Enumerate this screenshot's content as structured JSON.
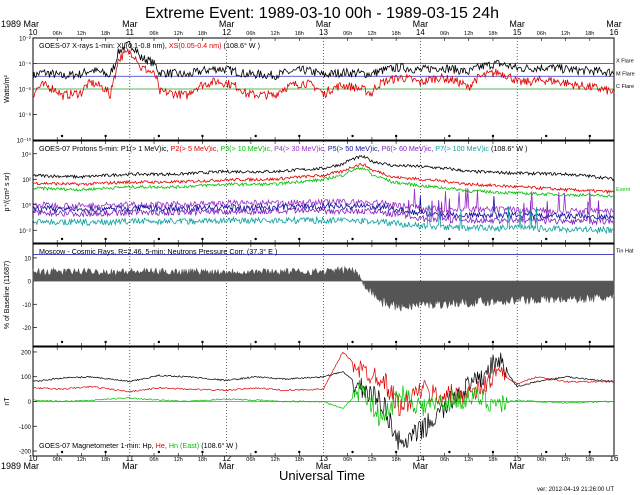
{
  "title": "Extreme Event: 1989-03-10 00h - 1989-03-15 24h",
  "version": "ver: 2012-04-19 21:26:00 UT",
  "xaxis": {
    "label": "Universal Time",
    "top_left_month": "1989 Mar",
    "bottom_left_month": "1989 Mar",
    "days": [
      "10",
      "11",
      "12",
      "13",
      "14",
      "15",
      "16"
    ],
    "month_labels": [
      "Mar",
      "Mar",
      "Mar",
      "Mar",
      "Mar",
      "Mar"
    ],
    "hour_labels": [
      "06h",
      "12h",
      "18h"
    ]
  },
  "colors": {
    "black": "#000000",
    "red": "#e00000",
    "green": "#00c000",
    "purple": "#9b30c8",
    "blue": "#1010a0",
    "violet": "#8020c0",
    "teal": "#10a0a0",
    "gray": "#555555",
    "ref": "#3030c0"
  },
  "panels": [
    {
      "id": "xray",
      "legend": [
        {
          "text": "GOES-07 X-rays  1-min: XL(0.1-0.8 nm), ",
          "color": "#000000"
        },
        {
          "text": "XS(0.05-0.4 nm)",
          "color": "#e00000"
        },
        {
          "text": "  (108.6° W )",
          "color": "#000000"
        }
      ],
      "ylabel": "Watts/m²",
      "yticks": [
        "10⁻²",
        "10⁻⁴",
        "10⁻⁶",
        "10⁻⁸",
        "10⁻¹⁰"
      ],
      "right_labels": [
        "X Flare",
        "M Flare",
        "C Flare"
      ]
    },
    {
      "id": "protons",
      "legend": [
        {
          "text": "GOES-07  Protons 5-min:  P1(> 1 MeV)ic, ",
          "color": "#000000"
        },
        {
          "text": "P2(> 5 MeV)ic, ",
          "color": "#e00000"
        },
        {
          "text": "P3(> 10 MeV)ic, ",
          "color": "#00c000"
        },
        {
          "text": "P4(> 30 MeV)ic, ",
          "color": "#9b30c8"
        },
        {
          "text": "P5(> 50 MeV)ic, ",
          "color": "#1010a0"
        },
        {
          "text": "P6(> 60 MeV)ic, ",
          "color": "#8020c0"
        },
        {
          "text": "P7(> 100 MeV)ic",
          "color": "#10a0a0"
        },
        {
          "text": "  (108.6° W )",
          "color": "#000000"
        }
      ],
      "ylabel": "p⁺/(cm² s sr)",
      "yticks": [
        "10⁴",
        "10²",
        "10⁰",
        "10⁻²"
      ],
      "right_labels": [
        "Event"
      ]
    },
    {
      "id": "cosmic",
      "legend": [
        {
          "text": "Moscow - Cosmic Rays, R=2.46,  5-min:  Neutrons Pressure Corr.  (37.3° E )",
          "color": "#000000"
        }
      ],
      "ylabel": "% of Baseline (11687)",
      "yticks": [
        "10",
        "0",
        "-10",
        "-20"
      ],
      "right_labels": [
        "Tin Hat"
      ]
    },
    {
      "id": "mag",
      "legend": [
        {
          "text": "GOES-07 Magnetometer  1-min:  Hp, ",
          "color": "#000000"
        },
        {
          "text": "He, ",
          "color": "#e00000"
        },
        {
          "text": "Hn (East)",
          "color": "#00c000"
        },
        {
          "text": "  (108.6° W )",
          "color": "#000000"
        }
      ],
      "ylabel": "nT",
      "yticks": [
        "200",
        "100",
        "0",
        "-100",
        "-200"
      ],
      "right_labels": []
    }
  ],
  "chart_data": [
    {
      "type": "line",
      "title": "GOES-07 X-rays 1-min",
      "ylabel": "Watts/m²",
      "yscale": "log",
      "ylim": [
        1e-10,
        0.01
      ],
      "xlim": [
        "1989-03-10T00:00",
        "1989-03-16T00:00"
      ],
      "thresholds": [
        {
          "name": "X Flare",
          "value": 0.0001
        },
        {
          "name": "M Flare",
          "value": 1e-05
        },
        {
          "name": "C Flare",
          "value": 1e-06
        }
      ],
      "series": [
        {
          "name": "XL(0.1-0.8 nm)",
          "color": "#000000",
          "x": [
            0,
            0.1,
            0.3,
            0.5,
            0.6,
            0.8,
            0.85,
            1.0,
            1.1,
            1.3,
            1.6,
            1.9,
            2.2,
            2.5,
            2.8,
            3.0,
            3.2,
            3.5,
            3.8,
            4.0,
            4.2,
            4.5,
            4.8,
            5.0,
            5.3,
            5.6,
            6.0
          ],
          "y": [
            1e-05,
            2e-05,
            1e-05,
            1.5e-05,
            3e-05,
            1e-05,
            8e-05,
            0.003,
            0.0003,
            2e-05,
            1.2e-05,
            4e-05,
            1.5e-05,
            1.2e-05,
            3e-05,
            1.2e-05,
            2e-05,
            1.5e-05,
            5e-05,
            3e-05,
            5e-05,
            2e-05,
            0.0001,
            4e-05,
            5e-05,
            3e-05,
            2e-05
          ]
        },
        {
          "name": "XS(0.05-0.4 nm)",
          "color": "#e00000",
          "x": [
            0,
            0.1,
            0.3,
            0.5,
            0.6,
            0.8,
            0.85,
            1.0,
            1.1,
            1.3,
            1.6,
            1.9,
            2.2,
            2.5,
            2.8,
            3.0,
            3.2,
            3.5,
            3.8,
            4.0,
            4.2,
            4.5,
            4.8,
            5.0,
            5.3,
            5.6,
            6.0
          ],
          "y": [
            3e-07,
            2e-06,
            3e-07,
            5e-07,
            3e-06,
            2e-07,
            8e-06,
            0.0008,
            5e-05,
            6e-07,
            3e-07,
            4e-06,
            4e-07,
            3e-07,
            3e-06,
            3e-07,
            2e-06,
            4e-07,
            8e-06,
            3e-06,
            8e-06,
            1e-06,
            2e-05,
            3e-06,
            5e-06,
            2e-06,
            5e-07
          ]
        }
      ]
    },
    {
      "type": "line",
      "title": "GOES-07 Protons 5-min",
      "ylabel": "p⁺/(cm² s sr)",
      "yscale": "log",
      "ylim": [
        0.001,
        100000.0
      ],
      "xlim": [
        "1989-03-10T00:00",
        "1989-03-16T00:00"
      ],
      "series": [
        {
          "name": "P1(> 1 MeV)ic",
          "color": "#000000",
          "x": [
            0,
            0.5,
            1,
            1.5,
            2,
            2.5,
            3,
            3.2,
            3.4,
            3.5,
            3.7,
            4,
            4.5,
            5,
            5.5,
            6
          ],
          "y": [
            200,
            150,
            250,
            250,
            400,
            400,
            700,
            1500,
            6000,
            2500,
            1200,
            1000,
            400,
            300,
            250,
            100
          ]
        },
        {
          "name": "P2(> 5 MeV)ic",
          "color": "#e00000",
          "x": [
            0,
            0.5,
            1,
            1.5,
            2,
            2.5,
            3,
            3.2,
            3.4,
            3.5,
            3.7,
            4,
            4.5,
            5,
            5.5,
            6
          ],
          "y": [
            50,
            40,
            60,
            60,
            90,
            100,
            200,
            400,
            1500,
            500,
            150,
            100,
            40,
            25,
            15,
            10
          ]
        },
        {
          "name": "P3(> 10 MeV)ic",
          "color": "#00c000",
          "x": [
            0,
            0.5,
            1,
            1.5,
            2,
            2.5,
            3,
            3.2,
            3.4,
            3.5,
            3.7,
            4,
            4.5,
            5,
            5.5,
            6
          ],
          "y": [
            20,
            15,
            25,
            25,
            40,
            40,
            90,
            200,
            800,
            200,
            60,
            30,
            12,
            8,
            6,
            5
          ]
        },
        {
          "name": "P4(> 30 MeV)ic",
          "color": "#9b30c8",
          "x": [
            0,
            0.5,
            1,
            1.5,
            2,
            2.5,
            3,
            3.5,
            4,
            4.5,
            5,
            5.5,
            6
          ],
          "y": [
            1,
            0.8,
            1,
            1,
            1.3,
            1.3,
            1.6,
            1.5,
            0.5,
            0.4,
            0.4,
            0.3,
            0.3
          ]
        },
        {
          "name": "P5(> 50 MeV)ic",
          "color": "#1010a0",
          "x": [
            0,
            0.5,
            1,
            1.5,
            2,
            2.5,
            3,
            3.5,
            4,
            4.5,
            5,
            5.5,
            6
          ],
          "y": [
            0.5,
            0.4,
            0.5,
            0.5,
            0.6,
            0.6,
            0.8,
            0.7,
            0.2,
            0.15,
            0.15,
            0.12,
            0.1
          ]
        },
        {
          "name": "P6(> 60 MeV)ic",
          "color": "#8020c0",
          "x": [
            0,
            0.5,
            1,
            1.5,
            2,
            2.5,
            3,
            3.5,
            4,
            4.5,
            5,
            5.5,
            6
          ],
          "y": [
            0.25,
            0.2,
            0.25,
            0.25,
            0.3,
            0.3,
            0.35,
            0.3,
            0.08,
            0.06,
            0.06,
            0.05,
            0.05
          ]
        },
        {
          "name": "P7(> 100 MeV)ic",
          "color": "#10a0a0",
          "x": [
            0,
            0.5,
            1,
            1.5,
            2,
            2.5,
            3,
            3.5,
            4,
            4.5,
            5,
            5.5,
            6
          ],
          "y": [
            0.05,
            0.04,
            0.05,
            0.05,
            0.06,
            0.06,
            0.06,
            0.05,
            0.02,
            0.015,
            0.015,
            0.012,
            0.01
          ]
        }
      ]
    },
    {
      "type": "area",
      "title": "Moscow - Cosmic Rays, R=2.46, 5-min: Neutrons Pressure Corr.",
      "ylabel": "% of Baseline (11687)",
      "ylim": [
        -28,
        16
      ],
      "xlim": [
        "1989-03-10T00:00",
        "1989-03-16T00:00"
      ],
      "reference_line": {
        "name": "Tin Hat",
        "value": 11.5
      },
      "series": [
        {
          "name": "Neutrons",
          "color": "#555555",
          "x": [
            0,
            0.5,
            1,
            1.5,
            2,
            2.5,
            3,
            3.3,
            3.45,
            3.6,
            3.8,
            4,
            4.5,
            5,
            5.5,
            6
          ],
          "y": [
            4,
            4,
            4,
            4,
            4,
            4,
            4,
            5,
            -2,
            -9,
            -11,
            -10,
            -9,
            -8,
            -7.5,
            -7
          ]
        }
      ]
    },
    {
      "type": "line",
      "title": "GOES-07 Magnetometer 1-min",
      "ylabel": "nT",
      "ylim": [
        -220,
        220
      ],
      "xlim": [
        "1989-03-10T00:00",
        "1989-03-16T00:00"
      ],
      "series": [
        {
          "name": "Hp",
          "color": "#000000",
          "x": [
            0,
            0.3,
            0.6,
            1,
            1.3,
            1.6,
            2,
            2.3,
            2.6,
            3,
            3.2,
            3.4,
            3.6,
            3.8,
            4,
            4.2,
            4.4,
            4.6,
            4.8,
            5,
            5.2,
            5.5,
            6
          ],
          "y": [
            80,
            95,
            100,
            80,
            105,
            100,
            85,
            100,
            90,
            100,
            120,
            50,
            0,
            -180,
            -120,
            -50,
            40,
            80,
            170,
            60,
            80,
            100,
            80
          ]
        },
        {
          "name": "He",
          "color": "#e00000",
          "x": [
            0,
            0.3,
            0.6,
            1,
            1.3,
            1.6,
            2,
            2.3,
            2.6,
            3,
            3.2,
            3.4,
            3.6,
            3.8,
            4,
            4.2,
            4.4,
            4.6,
            4.8,
            5,
            5.2,
            5.5,
            6
          ],
          "y": [
            55,
            50,
            60,
            40,
            55,
            50,
            45,
            55,
            45,
            50,
            200,
            120,
            100,
            -30,
            50,
            20,
            30,
            40,
            120,
            70,
            100,
            80,
            80
          ]
        },
        {
          "name": "Hn (East)",
          "color": "#00c000",
          "x": [
            0,
            0.3,
            0.6,
            1,
            1.3,
            1.6,
            2,
            2.3,
            2.6,
            3,
            3.2,
            3.4,
            3.6,
            3.8,
            4,
            4.2,
            4.4,
            4.6,
            4.8,
            5,
            5.2,
            5.5,
            6
          ],
          "y": [
            5,
            0,
            5,
            15,
            5,
            0,
            10,
            5,
            0,
            0,
            -30,
            60,
            -80,
            40,
            -20,
            -10,
            10,
            20,
            -10,
            5,
            0,
            -5,
            0
          ]
        }
      ]
    }
  ]
}
